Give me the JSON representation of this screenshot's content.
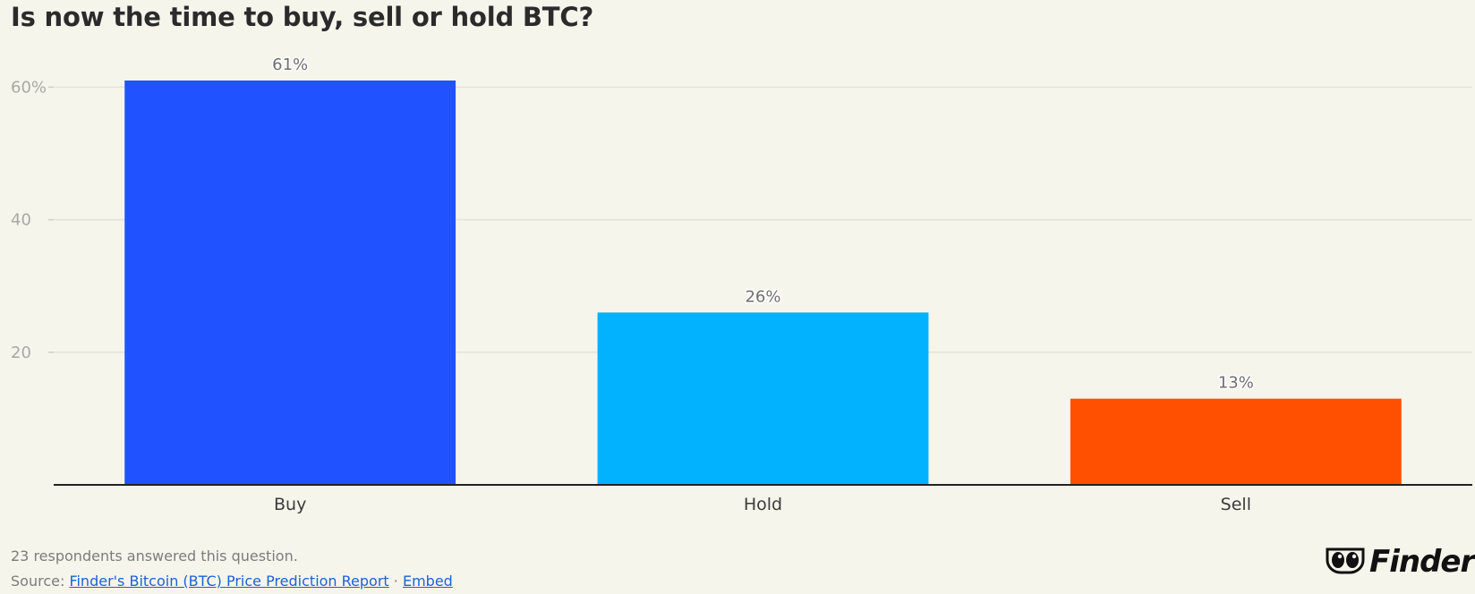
{
  "title": "Is now the time to buy, sell or hold BTC?",
  "chart_data": {
    "type": "bar",
    "categories": [
      "Buy",
      "Hold",
      "Sell"
    ],
    "values": [
      61,
      26,
      13
    ],
    "data_labels": [
      "61%",
      "26%",
      "13%"
    ],
    "colors": [
      "#2152ff",
      "#03b2fe",
      "#fe5000"
    ],
    "yticks": [
      {
        "value": 20,
        "label": "20"
      },
      {
        "value": 40,
        "label": "40"
      },
      {
        "value": 60,
        "label": "60%"
      }
    ],
    "ylim": [
      0,
      61
    ],
    "grid": true
  },
  "footnote": "23 respondents answered this question.",
  "source": {
    "prefix": "Source:",
    "link_text": "Finder's Bitcoin (BTC) Price Prediction Report",
    "separator": "·",
    "embed_text": "Embed"
  },
  "logo": {
    "text": "Finder",
    "icon": "finder-eyes-icon"
  }
}
